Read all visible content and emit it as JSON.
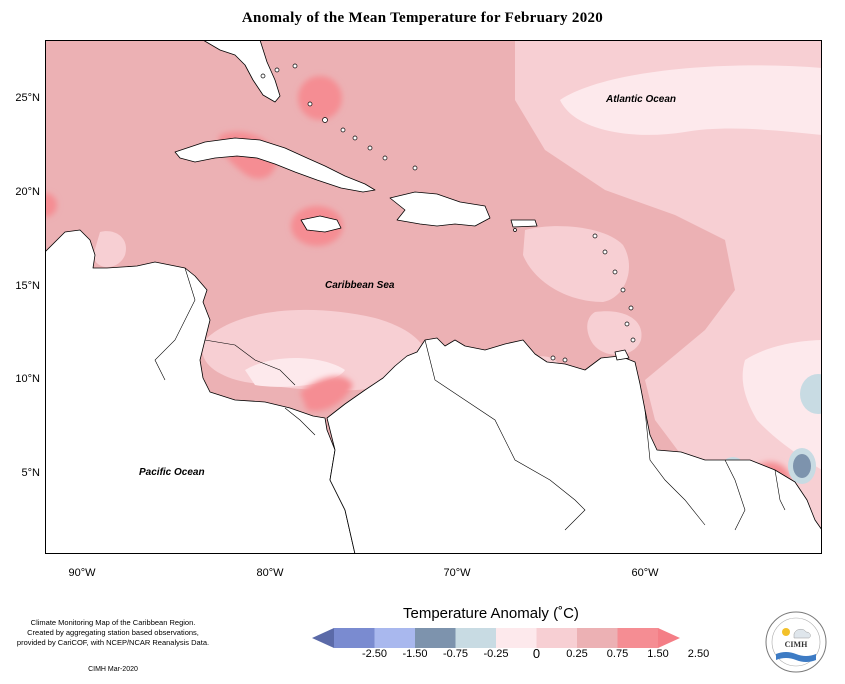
{
  "title": "Anomaly of the Mean Temperature for February 2020",
  "axes": {
    "latitude_ticks": [
      "25°N",
      "20°N",
      "15°N",
      "10°N",
      "5°N"
    ],
    "longitude_ticks": [
      "90°W",
      "80°W",
      "70°W",
      "60°W"
    ]
  },
  "labels": {
    "atlantic": "Atlantic Ocean",
    "caribbean": "Caribbean Sea",
    "pacific": "Pacific Ocean"
  },
  "legend": {
    "title": "Temperature Anomaly (˚C)",
    "ticks": [
      "-2.50",
      "-1.50",
      "-0.75",
      "-0.25",
      "0",
      "0.25",
      "0.75",
      "1.50",
      "2.50"
    ],
    "colors": [
      "#5b6aa8",
      "#7a8bd0",
      "#a9b8ee",
      "#7d93ad",
      "#c8dbe3",
      "#fde9ec",
      "#f7cfd3",
      "#ecb1b4",
      "#f58d93",
      "#f47e86"
    ]
  },
  "credit": {
    "line1": "Climate Monitoring Map of the Caribbean Region.",
    "line2": "Created by aggregating station based observations,",
    "line3": "provided by CariCOF, with NCEP/NCAR Reanalysis Data.",
    "stamp": "CIMH Mar-2020"
  },
  "logo": {
    "text": "CIMH"
  }
}
